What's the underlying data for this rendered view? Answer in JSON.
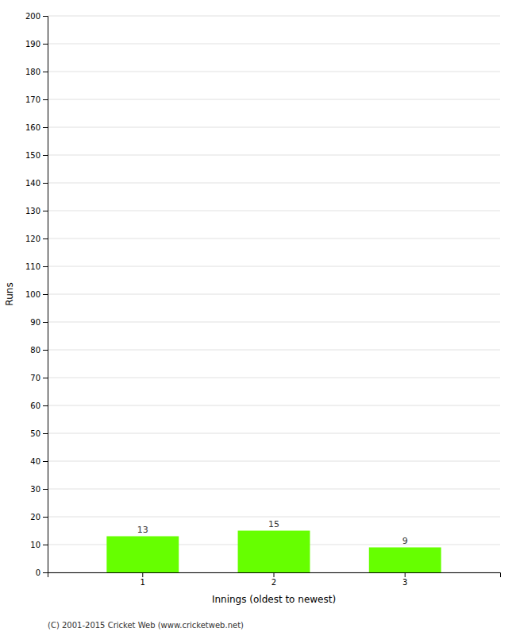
{
  "chart_data": {
    "type": "bar",
    "categories": [
      "1",
      "2",
      "3"
    ],
    "values": [
      13,
      15,
      9
    ],
    "color": "#66ff00",
    "xlabel": "Innings (oldest to newest)",
    "ylabel": "Runs",
    "ylim": [
      0,
      200
    ],
    "yticks": [
      0,
      10,
      20,
      30,
      40,
      50,
      60,
      70,
      80,
      90,
      100,
      110,
      120,
      130,
      140,
      150,
      160,
      170,
      180,
      190,
      200
    ],
    "grid": true,
    "data_labels": true,
    "annotations": [
      "(C) 2001-2015 Cricket Web (www.cricketweb.net)"
    ]
  }
}
